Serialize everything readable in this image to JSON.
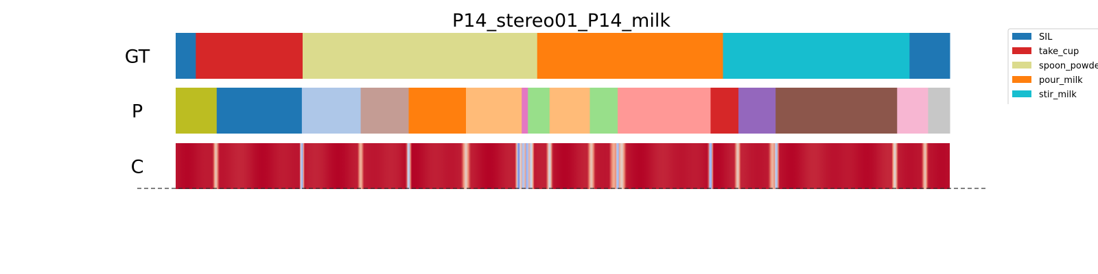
{
  "chart_data": {
    "type": "segmentation",
    "title": "P14_stereo01_P14_milk",
    "rows": [
      {
        "label": "GT",
        "segments": [
          {
            "start": 0.0,
            "end": 0.026,
            "color": "#1f77b4",
            "action": "SIL"
          },
          {
            "start": 0.026,
            "end": 0.164,
            "color": "#d62728",
            "action": "take_cup"
          },
          {
            "start": 0.164,
            "end": 0.467,
            "color": "#dbdb8d",
            "action": "spoon_powder"
          },
          {
            "start": 0.467,
            "end": 0.707,
            "color": "#ff7f0e",
            "action": "pour_milk"
          },
          {
            "start": 0.707,
            "end": 0.948,
            "color": "#17becf",
            "action": "stir_milk"
          },
          {
            "start": 0.948,
            "end": 1.0,
            "color": "#1f77b4",
            "action": "SIL"
          }
        ]
      },
      {
        "label": "P",
        "segments": [
          {
            "start": 0.0,
            "end": 0.053,
            "color": "#bcbd22"
          },
          {
            "start": 0.053,
            "end": 0.163,
            "color": "#1f77b4"
          },
          {
            "start": 0.163,
            "end": 0.239,
            "color": "#aec7e8"
          },
          {
            "start": 0.239,
            "end": 0.301,
            "color": "#c49c94"
          },
          {
            "start": 0.301,
            "end": 0.375,
            "color": "#ff7f0e"
          },
          {
            "start": 0.375,
            "end": 0.447,
            "color": "#ffbb78"
          },
          {
            "start": 0.447,
            "end": 0.455,
            "color": "#e377c2"
          },
          {
            "start": 0.455,
            "end": 0.483,
            "color": "#98df8a"
          },
          {
            "start": 0.483,
            "end": 0.535,
            "color": "#ffbb78"
          },
          {
            "start": 0.535,
            "end": 0.571,
            "color": "#98df8a"
          },
          {
            "start": 0.571,
            "end": 0.691,
            "color": "#ff9896"
          },
          {
            "start": 0.691,
            "end": 0.727,
            "color": "#d62728"
          },
          {
            "start": 0.727,
            "end": 0.775,
            "color": "#9467bd"
          },
          {
            "start": 0.775,
            "end": 0.932,
            "color": "#8c564b"
          },
          {
            "start": 0.932,
            "end": 0.972,
            "color": "#f7b6d2"
          },
          {
            "start": 0.972,
            "end": 1.0,
            "color": "#c7c7c7"
          }
        ]
      },
      {
        "label": "C",
        "colormap": "coolwarm",
        "base_value": 0.97,
        "dips": [
          {
            "pos": 0.052,
            "min": 0.55,
            "width": 0.004
          },
          {
            "pos": 0.163,
            "min": 0.15,
            "width": 0.003
          },
          {
            "pos": 0.239,
            "min": 0.6,
            "width": 0.004
          },
          {
            "pos": 0.301,
            "min": 0.2,
            "width": 0.003
          },
          {
            "pos": 0.375,
            "min": 0.55,
            "width": 0.006
          },
          {
            "pos": 0.443,
            "min": 0.05,
            "width": 0.004
          },
          {
            "pos": 0.449,
            "min": 0.2,
            "width": 0.004
          },
          {
            "pos": 0.454,
            "min": 0.05,
            "width": 0.003
          },
          {
            "pos": 0.459,
            "min": 0.3,
            "width": 0.004
          },
          {
            "pos": 0.483,
            "min": 0.4,
            "width": 0.004
          },
          {
            "pos": 0.537,
            "min": 0.55,
            "width": 0.005
          },
          {
            "pos": 0.566,
            "min": 0.65,
            "width": 0.006
          },
          {
            "pos": 0.571,
            "min": 0.1,
            "width": 0.003
          },
          {
            "pos": 0.576,
            "min": 0.5,
            "width": 0.006
          },
          {
            "pos": 0.691,
            "min": 0.05,
            "width": 0.003
          },
          {
            "pos": 0.726,
            "min": 0.5,
            "width": 0.004
          },
          {
            "pos": 0.771,
            "min": 0.6,
            "width": 0.005
          },
          {
            "pos": 0.776,
            "min": 0.15,
            "width": 0.003
          },
          {
            "pos": 0.929,
            "min": 0.45,
            "width": 0.004
          },
          {
            "pos": 0.968,
            "min": 0.55,
            "width": 0.004
          }
        ]
      }
    ],
    "legend": {
      "placement": "upper-right",
      "entries": [
        {
          "label": "SIL",
          "color": "#1f77b4"
        },
        {
          "label": "take_cup",
          "color": "#d62728"
        },
        {
          "label": "spoon_powder",
          "color": "#dbdb8d"
        },
        {
          "label": "pour_milk",
          "color": "#ff7f0e"
        },
        {
          "label": "stir_milk",
          "color": "#17becf"
        }
      ]
    },
    "baseline": "dashed"
  }
}
